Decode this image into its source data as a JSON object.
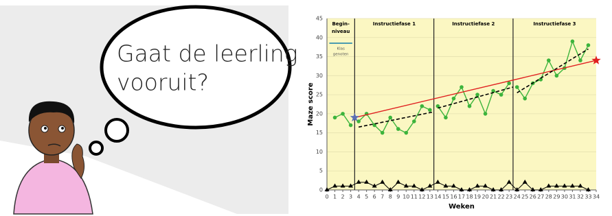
{
  "bubble": {
    "lines": [
      "Gaat de leerling",
      "vooruit?"
    ]
  },
  "chart_data": {
    "type": "line",
    "x_label": "Weken",
    "y_label": "Maze score",
    "xlim": [
      0,
      34
    ],
    "ylim": [
      0,
      45
    ],
    "xticks": [
      0,
      1,
      2,
      3,
      4,
      5,
      6,
      7,
      8,
      9,
      10,
      11,
      12,
      13,
      14,
      15,
      16,
      17,
      18,
      19,
      20,
      21,
      22,
      23,
      24,
      25,
      26,
      27,
      28,
      29,
      30,
      31,
      32,
      33,
      34
    ],
    "yticks": [
      0,
      5,
      10,
      15,
      20,
      25,
      30,
      35,
      40,
      45
    ],
    "grid": true,
    "background": "#fbf7c2",
    "phase_boundaries": [
      3.5,
      13.5,
      23.5
    ],
    "phases": [
      [
        "Begin-",
        "niveau"
      ],
      [
        "Instructiefase 1"
      ],
      [
        "Instructiefase 2"
      ],
      [
        "Instructiefase 3"
      ]
    ],
    "legend": {
      "label": [
        "Klas",
        "genoten"
      ],
      "color": "#4a9bb0"
    },
    "series": [
      {
        "color": "#3cb43c",
        "style": "solid-dot",
        "x": [
          1,
          2,
          3,
          3.5,
          4,
          5,
          6,
          7,
          8,
          9,
          10,
          11,
          12,
          13,
          13.5,
          14,
          15,
          16,
          17,
          18,
          19,
          20,
          21,
          22,
          23,
          23.5,
          24,
          25,
          26,
          27,
          28,
          29,
          30,
          31,
          32,
          33
        ],
        "values": [
          19,
          20,
          17,
          null,
          18,
          20,
          17,
          15,
          19,
          16,
          15,
          18,
          22,
          21,
          null,
          22,
          19,
          24,
          27,
          22,
          25,
          20,
          26,
          25,
          28,
          null,
          27,
          24,
          28,
          29,
          34,
          30,
          32,
          39,
          34,
          38
        ]
      },
      {
        "color": "#000000",
        "style": "triangle",
        "x": [
          0,
          1,
          2,
          3,
          4,
          5,
          6,
          7,
          8,
          9,
          10,
          11,
          12,
          13,
          14,
          15,
          16,
          17,
          18,
          19,
          20,
          21,
          22,
          23,
          24,
          25,
          26,
          27,
          28,
          29,
          30,
          31,
          32,
          33
        ],
        "values": [
          0,
          1,
          1,
          1,
          2,
          2,
          1,
          2,
          0,
          2,
          1,
          1,
          0,
          1,
          2,
          1,
          1,
          0,
          0,
          1,
          1,
          0,
          0,
          2,
          0,
          2,
          0,
          0,
          1,
          1,
          1,
          1,
          1,
          0
        ]
      },
      {
        "color": "#e02020",
        "style": "aim",
        "start_color": "#5b6fb5",
        "x": [
          3.5,
          34
        ],
        "values": [
          19,
          34
        ]
      },
      {
        "color": "#000000",
        "style": "dashed",
        "x": [
          4,
          13.5,
          null,
          14,
          23.5,
          null,
          24,
          33
        ],
        "values": [
          16.5,
          20.5,
          null,
          21.5,
          27,
          null,
          25.5,
          37
        ]
      }
    ]
  }
}
